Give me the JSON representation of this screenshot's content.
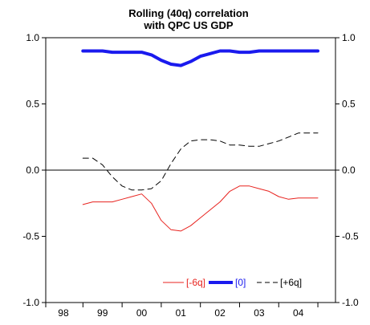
{
  "chart_data": {
    "type": "line",
    "title_line1": "Rolling (40q) correlation",
    "title_line2": "with QPC US GDP",
    "xlabel": "",
    "ylabel": "",
    "x_tick_labels": [
      "98",
      "99",
      "00",
      "01",
      "02",
      "03",
      "04"
    ],
    "x_tick_positions": [
      1998.0,
      1999.0,
      2000.0,
      2001.0,
      2002.0,
      2003.0,
      2004.0
    ],
    "y_ticks": [
      1.0,
      0.5,
      0.0,
      -0.5,
      -1.0
    ],
    "y_tick_labels": [
      "1.0",
      "0.5",
      "0.0",
      "-0.5",
      "-1.0"
    ],
    "xlim": [
      1997.55,
      2004.95
    ],
    "ylim": [
      -1.0,
      1.0
    ],
    "grid": false,
    "zero_line": true,
    "legend_position": "bottom-right",
    "series": [
      {
        "name": "[-6q]",
        "color": "#e8231f",
        "style": "solid",
        "weight": "thin",
        "x": [
          1998.5,
          1998.75,
          1999.0,
          1999.25,
          1999.5,
          1999.75,
          2000.0,
          2000.25,
          2000.5,
          2000.75,
          2001.0,
          2001.25,
          2001.5,
          2001.75,
          2002.0,
          2002.25,
          2002.5,
          2002.75,
          2003.0,
          2003.25,
          2003.5,
          2003.75,
          2004.0,
          2004.25,
          2004.5
        ],
        "y": [
          -0.26,
          -0.24,
          -0.24,
          -0.24,
          -0.22,
          -0.2,
          -0.18,
          -0.25,
          -0.38,
          -0.45,
          -0.46,
          -0.42,
          -0.36,
          -0.3,
          -0.24,
          -0.16,
          -0.12,
          -0.12,
          -0.14,
          -0.16,
          -0.2,
          -0.22,
          -0.21,
          -0.21,
          -0.21
        ]
      },
      {
        "name": "[0]",
        "color": "#1a1aee",
        "style": "solid",
        "weight": "thick",
        "x": [
          1998.5,
          1998.75,
          1999.0,
          1999.25,
          1999.5,
          1999.75,
          2000.0,
          2000.25,
          2000.5,
          2000.75,
          2001.0,
          2001.25,
          2001.5,
          2001.75,
          2002.0,
          2002.25,
          2002.5,
          2002.75,
          2003.0,
          2003.25,
          2003.5,
          2003.75,
          2004.0,
          2004.25,
          2004.5
        ],
        "y": [
          0.9,
          0.9,
          0.9,
          0.89,
          0.89,
          0.89,
          0.89,
          0.87,
          0.83,
          0.8,
          0.79,
          0.82,
          0.86,
          0.88,
          0.9,
          0.9,
          0.89,
          0.89,
          0.9,
          0.9,
          0.9,
          0.9,
          0.9,
          0.9,
          0.9
        ]
      },
      {
        "name": "[+6q]",
        "color": "#000000",
        "style": "dashed",
        "weight": "thin",
        "x": [
          1998.5,
          1998.75,
          1999.0,
          1999.25,
          1999.5,
          1999.75,
          2000.0,
          2000.25,
          2000.5,
          2000.75,
          2001.0,
          2001.25,
          2001.5,
          2001.75,
          2002.0,
          2002.25,
          2002.5,
          2002.75,
          2003.0,
          2003.25,
          2003.5,
          2003.75,
          2004.0,
          2004.25,
          2004.5
        ],
        "y": [
          0.09,
          0.09,
          0.04,
          -0.05,
          -0.12,
          -0.15,
          -0.15,
          -0.14,
          -0.08,
          0.05,
          0.16,
          0.22,
          0.23,
          0.23,
          0.22,
          0.19,
          0.19,
          0.18,
          0.18,
          0.2,
          0.22,
          0.25,
          0.28,
          0.28,
          0.28
        ]
      }
    ]
  }
}
